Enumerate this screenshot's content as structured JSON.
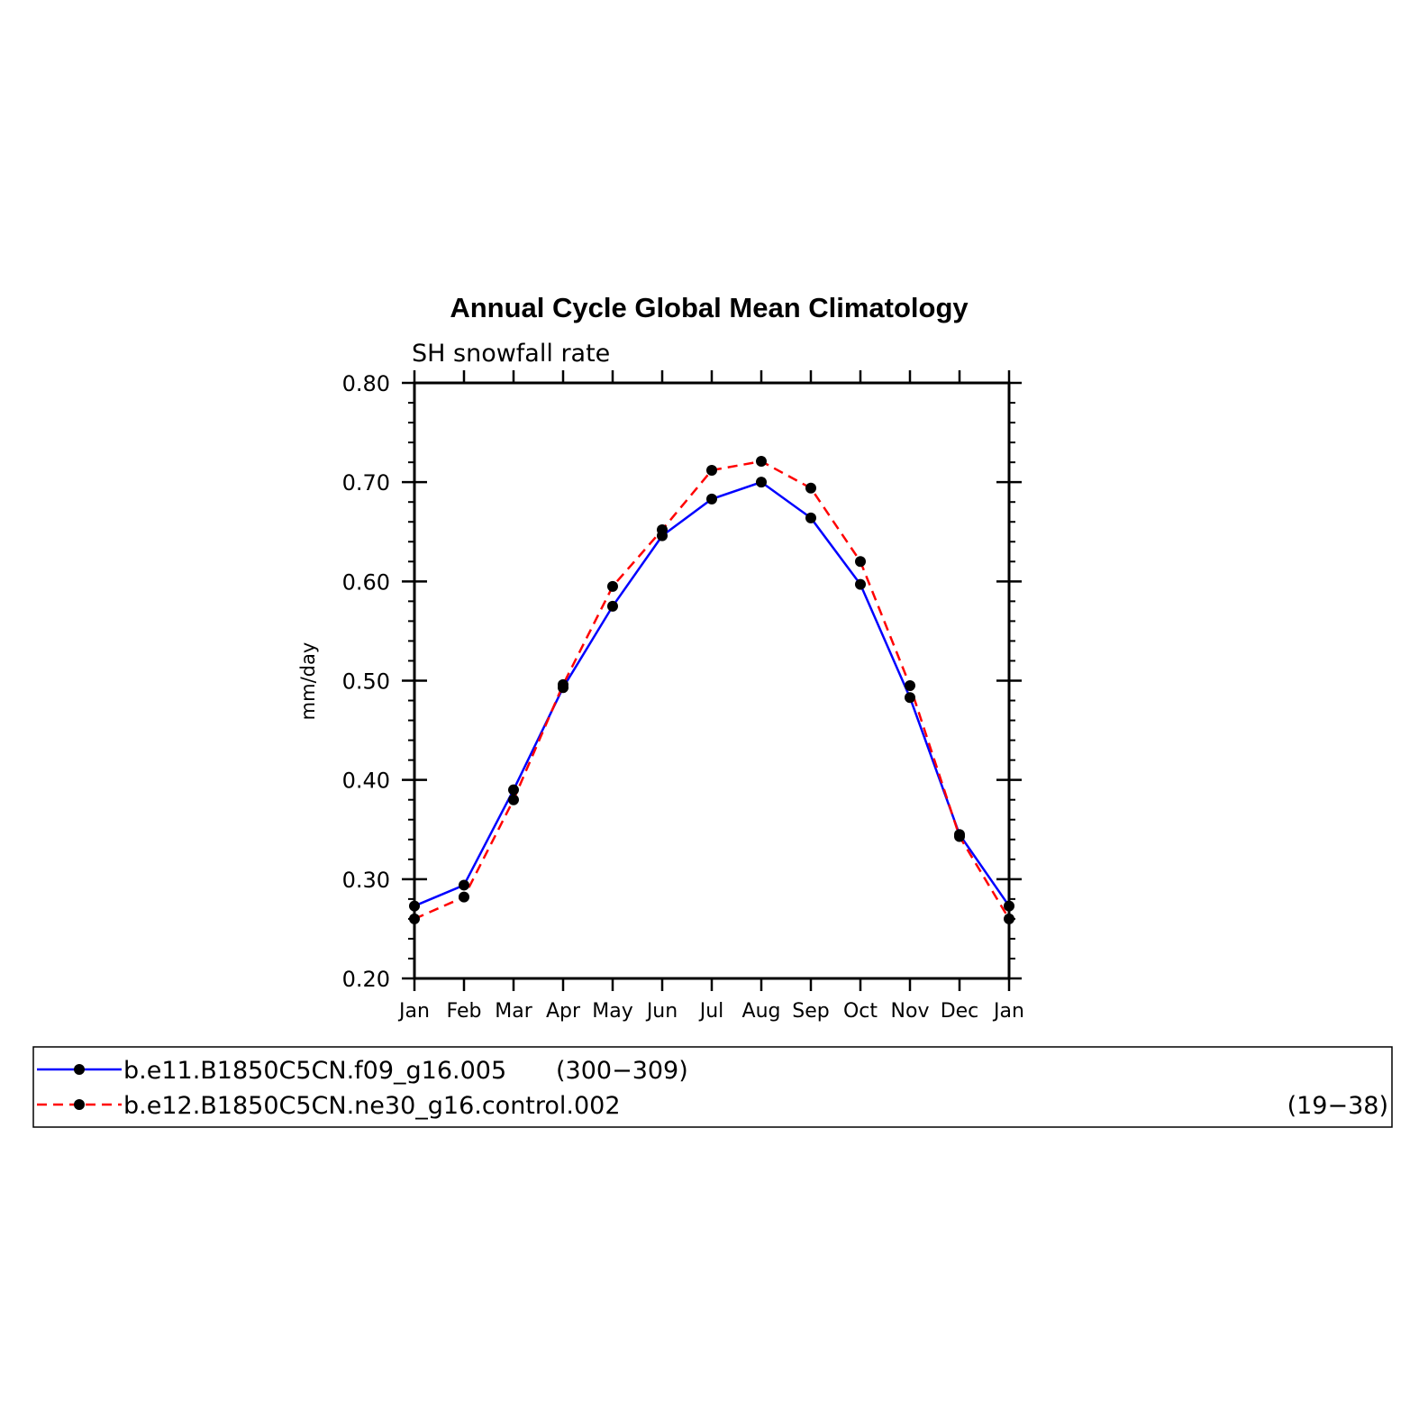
{
  "chart_data": {
    "type": "line",
    "title": "Annual Cycle Global Mean Climatology",
    "subtitle": "SH snowfall rate",
    "xlabel": "",
    "ylabel": "mm/day",
    "categories": [
      "Jan",
      "Feb",
      "Mar",
      "Apr",
      "May",
      "Jun",
      "Jul",
      "Aug",
      "Sep",
      "Oct",
      "Nov",
      "Dec",
      "Jan"
    ],
    "ylim": [
      0.2,
      0.8
    ],
    "yticks": [
      "0.20",
      "0.30",
      "0.40",
      "0.50",
      "0.60",
      "0.70",
      "0.80"
    ],
    "series": [
      {
        "name": "b.e11.B1850C5CN.f09_g16.005",
        "years": "(300−309)",
        "color": "#0000ff",
        "style": "solid",
        "values": [
          0.273,
          0.294,
          0.39,
          0.493,
          0.575,
          0.646,
          0.683,
          0.7,
          0.664,
          0.597,
          0.483,
          0.345,
          0.273
        ]
      },
      {
        "name": "b.e12.B1850C5CN.ne30_g16.control.002",
        "years": "(19−38)",
        "color": "#ff0000",
        "style": "dashed",
        "values": [
          0.26,
          0.282,
          0.38,
          0.496,
          0.595,
          0.652,
          0.712,
          0.721,
          0.694,
          0.62,
          0.495,
          0.343,
          0.26
        ]
      }
    ],
    "grid": false,
    "legend_position": "bottom"
  }
}
